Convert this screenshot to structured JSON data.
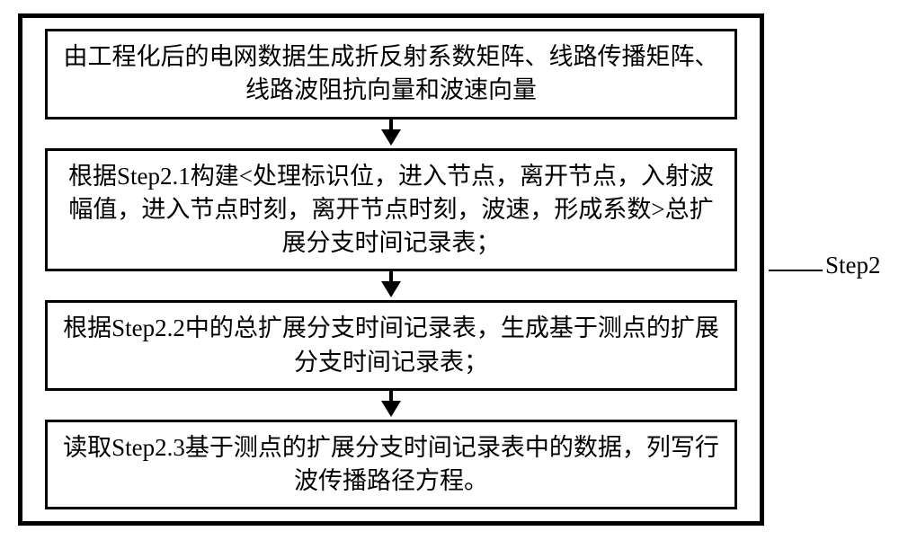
{
  "flowchart": {
    "type": "flowchart",
    "nodes": [
      {
        "id": "box1",
        "text": "由工程化后的电网数据生成折反射系数矩阵、线路传播矩阵、线路波阻抗向量和波速向量"
      },
      {
        "id": "box2",
        "text": "根据Step2.1构建<处理标识位，进入节点，离开节点，入射波幅值，进入节点时刻，离开节点时刻，波速，形成系数>总扩展分支时间记录表；"
      },
      {
        "id": "box3",
        "text": "根据Step2.2中的总扩展分支时间记录表，生成基于测点的扩展分支时间记录表；"
      },
      {
        "id": "box4",
        "text": "读取Step2.3基于测点的扩展分支时间记录表中的数据，列写行波传播路径方程。"
      }
    ],
    "label": "Step2",
    "border_color": "#000000",
    "background_color": "#ffffff",
    "box_border_width": 3,
    "outer_border_width": 5,
    "font_size": 27,
    "arrow_color": "#000000"
  }
}
